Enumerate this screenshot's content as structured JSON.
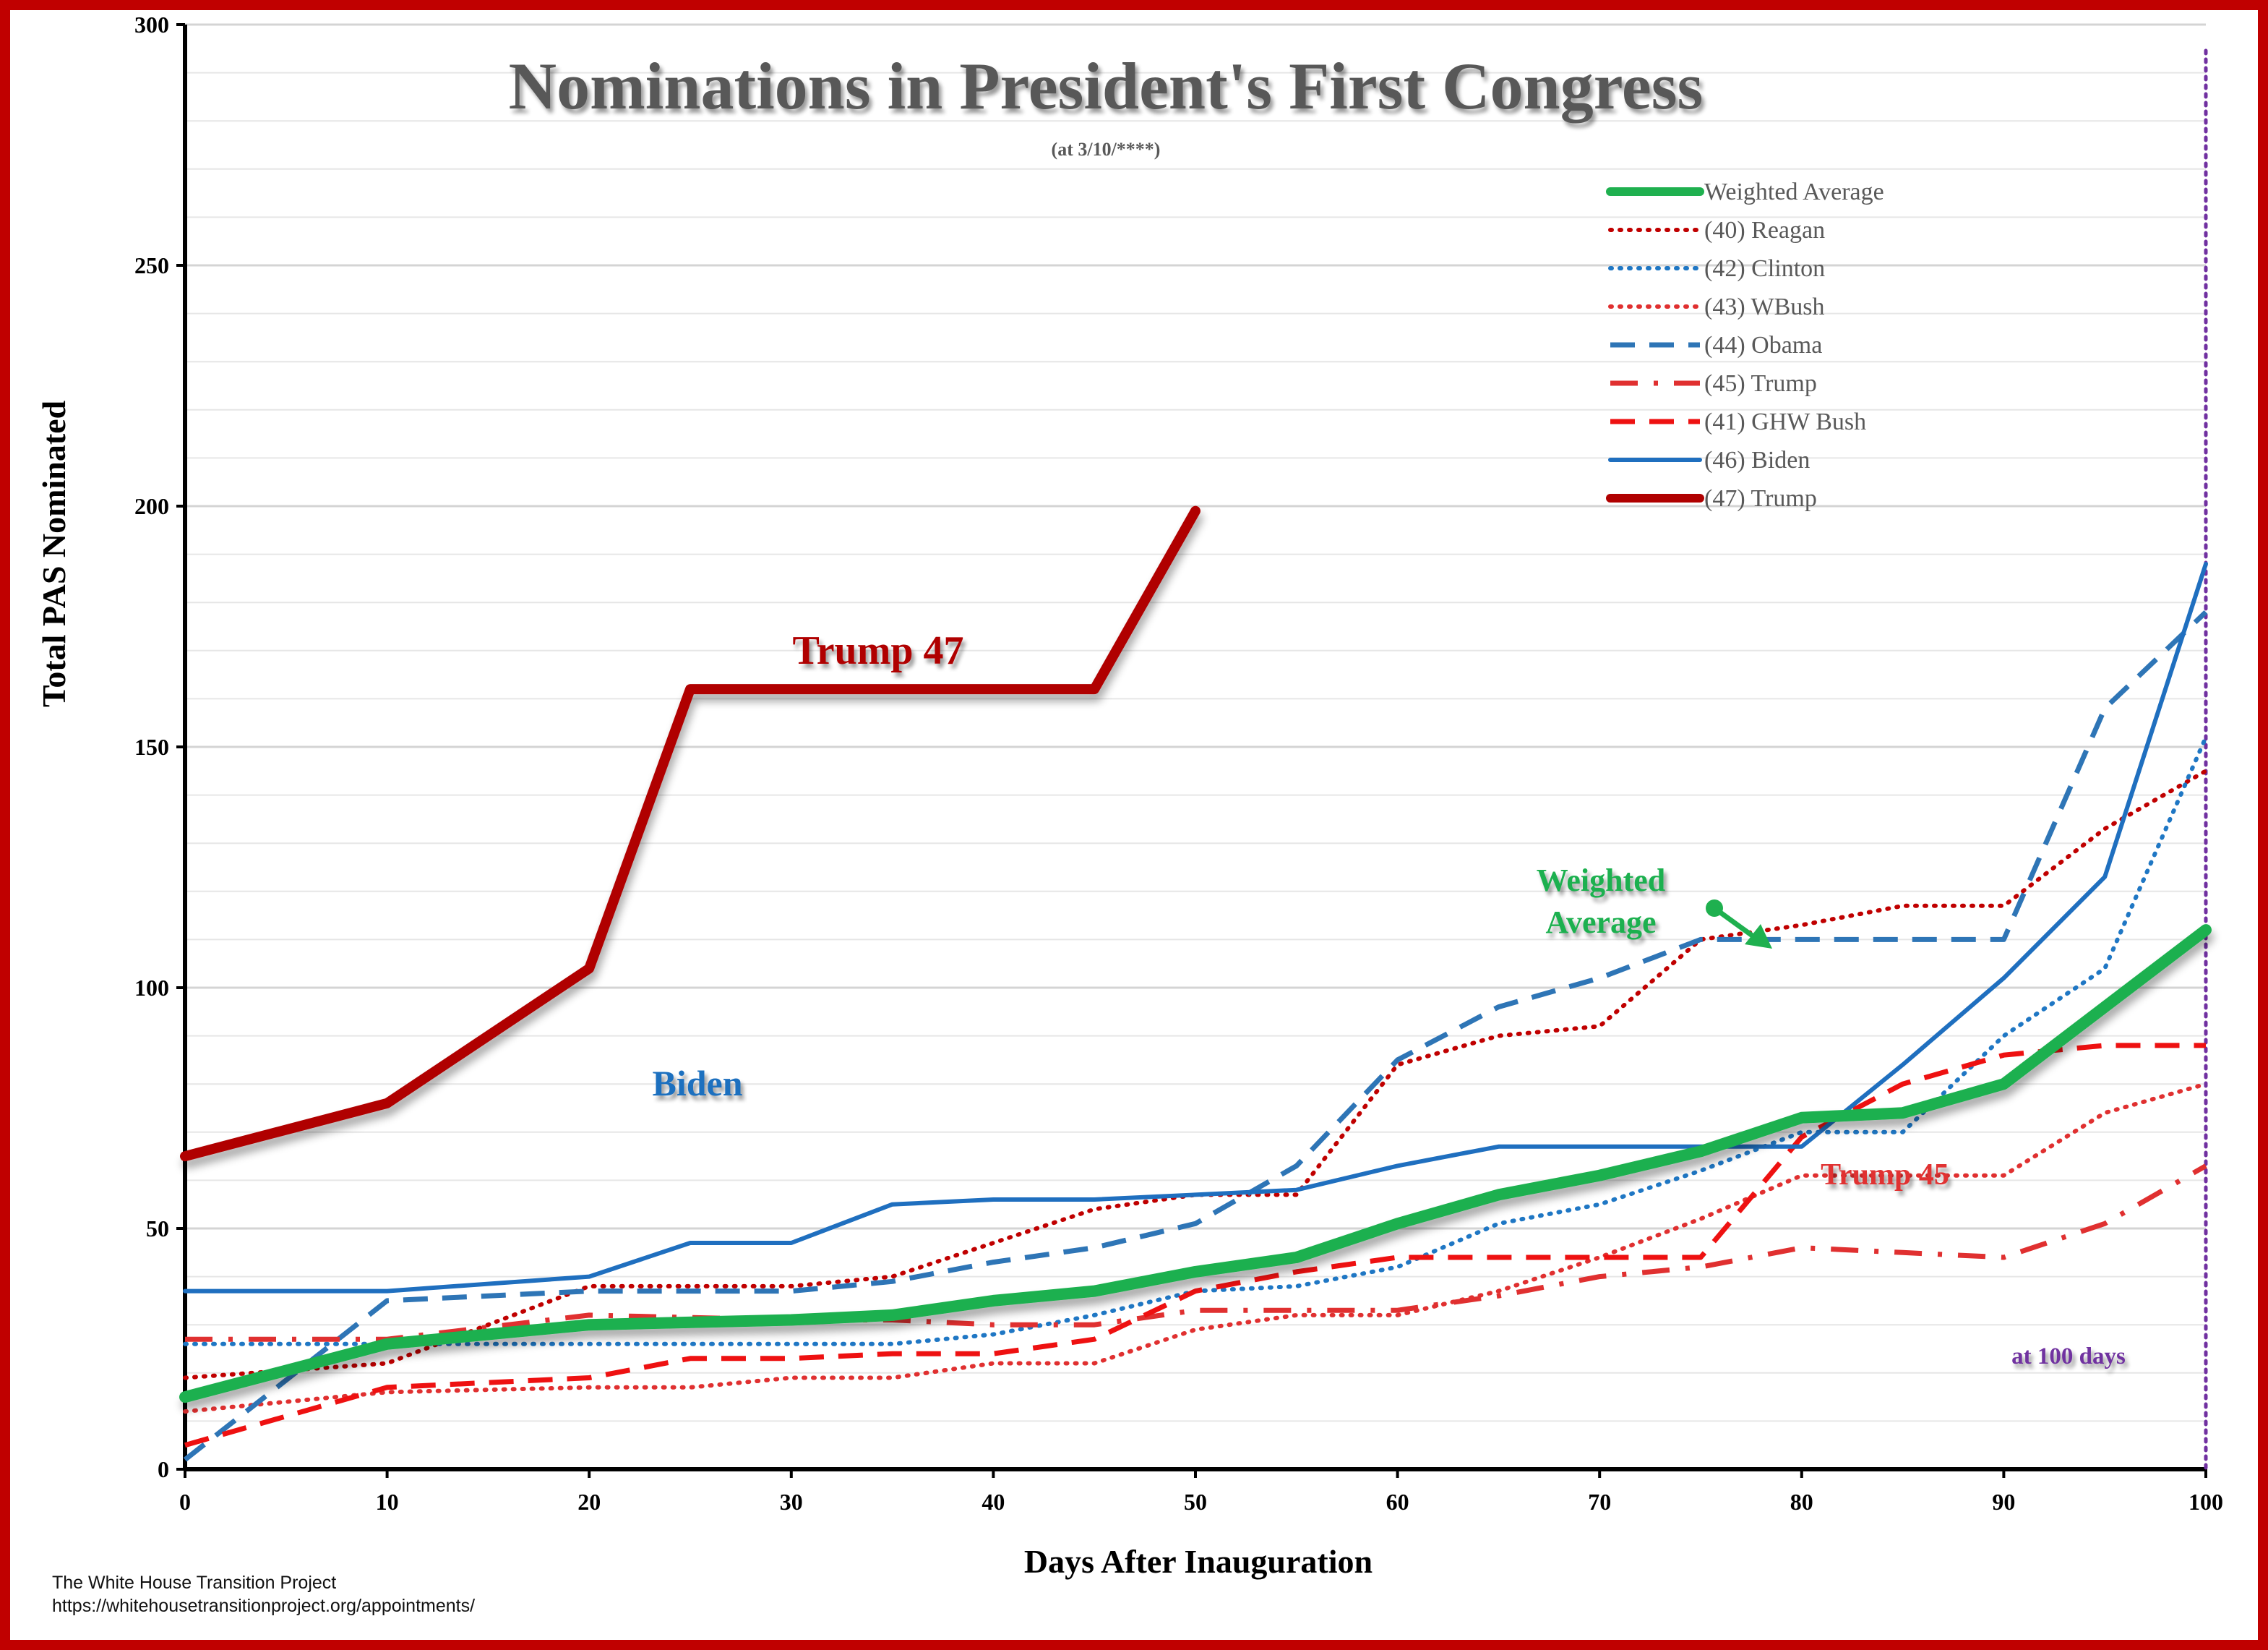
{
  "chart_data": {
    "type": "line",
    "title": "Nominations in President's First Congress",
    "subtitle": "(at 3/10/****)",
    "xlabel": "Days After Inauguration",
    "ylabel": "Total PAS Nominated",
    "xlim": [
      0,
      100
    ],
    "ylim": [
      0,
      300
    ],
    "x_ticks": [
      0,
      10,
      20,
      30,
      40,
      50,
      60,
      70,
      80,
      90,
      100
    ],
    "y_ticks": [
      0,
      50,
      100,
      150,
      200,
      250,
      300
    ],
    "grid": true,
    "legend_position": "top-right",
    "series": [
      {
        "name": "(40) Reagan",
        "color": "#c00000",
        "style": "dotted",
        "x": [
          0,
          10,
          20,
          30,
          35,
          40,
          45,
          50,
          55,
          60,
          65,
          70,
          75,
          80,
          85,
          90,
          95,
          100
        ],
        "y": [
          19,
          22,
          38,
          38,
          40,
          47,
          54,
          57,
          57,
          84,
          90,
          92,
          110,
          113,
          117,
          117,
          133,
          145
        ]
      },
      {
        "name": "(42) Clinton",
        "color": "#1f77c4",
        "style": "dotted",
        "x": [
          0,
          10,
          20,
          30,
          35,
          40,
          45,
          50,
          55,
          60,
          65,
          70,
          75,
          80,
          85,
          90,
          95,
          100
        ],
        "y": [
          26,
          26,
          26,
          26,
          26,
          28,
          32,
          37,
          38,
          42,
          51,
          55,
          62,
          70,
          70,
          90,
          104,
          152
        ]
      },
      {
        "name": "(43) WBush",
        "color": "#e03030",
        "style": "dotted",
        "x": [
          0,
          10,
          20,
          25,
          30,
          35,
          40,
          45,
          50,
          55,
          60,
          65,
          70,
          75,
          80,
          85,
          90,
          95,
          100
        ],
        "y": [
          12,
          16,
          17,
          17,
          19,
          19,
          22,
          22,
          29,
          32,
          32,
          37,
          44,
          52,
          61,
          61,
          61,
          74,
          80
        ]
      },
      {
        "name": "(44) Obama",
        "color": "#2e75b6",
        "style": "dashed",
        "x": [
          0,
          10,
          20,
          25,
          30,
          35,
          40,
          45,
          50,
          55,
          60,
          65,
          70,
          75,
          80,
          85,
          90,
          95,
          100
        ],
        "y": [
          2,
          35,
          37,
          37,
          37,
          39,
          43,
          46,
          51,
          63,
          85,
          96,
          102,
          110,
          110,
          110,
          110,
          158,
          178
        ]
      },
      {
        "name": "(45) Trump",
        "color": "#e03030",
        "style": "dashdot",
        "x": [
          0,
          10,
          20,
          30,
          35,
          40,
          45,
          50,
          55,
          60,
          65,
          70,
          75,
          80,
          85,
          90,
          95,
          100
        ],
        "y": [
          27,
          27,
          32,
          31,
          31,
          30,
          30,
          33,
          33,
          33,
          36,
          40,
          42,
          46,
          45,
          44,
          51,
          63
        ]
      },
      {
        "name": "(41) GHW Bush",
        "color": "#ee1111",
        "style": "dashed",
        "x": [
          0,
          10,
          20,
          25,
          30,
          35,
          40,
          45,
          50,
          55,
          60,
          65,
          70,
          75,
          80,
          85,
          90,
          95,
          100
        ],
        "y": [
          5,
          17,
          19,
          23,
          23,
          24,
          24,
          27,
          37,
          41,
          44,
          44,
          44,
          44,
          69,
          80,
          86,
          88,
          88
        ]
      },
      {
        "name": "(46) Biden",
        "color": "#1f6fbf",
        "style": "solid",
        "x": [
          0,
          10,
          20,
          25,
          30,
          35,
          40,
          45,
          50,
          55,
          60,
          65,
          70,
          75,
          80,
          85,
          90,
          95,
          100
        ],
        "y": [
          37,
          37,
          40,
          47,
          47,
          55,
          56,
          56,
          57,
          58,
          63,
          67,
          67,
          67,
          67,
          84,
          102,
          123,
          188
        ]
      },
      {
        "name": "Weighted Average",
        "color": "#1fb04f",
        "style": "thick",
        "x": [
          0,
          10,
          20,
          30,
          35,
          40,
          45,
          50,
          55,
          60,
          65,
          70,
          75,
          80,
          85,
          90,
          95,
          100
        ],
        "y": [
          15,
          26,
          30,
          31,
          32,
          35,
          37,
          41,
          44,
          51,
          57,
          61,
          66,
          73,
          74,
          80,
          96,
          112
        ]
      },
      {
        "name": "(47) Trump",
        "color": "#b00000",
        "style": "thickest",
        "x": [
          0,
          10,
          20,
          25,
          30,
          35,
          40,
          45,
          50
        ],
        "y": [
          65,
          76,
          104,
          162,
          162,
          162,
          162,
          162,
          199
        ]
      }
    ],
    "legend_order": [
      "Weighted Average",
      "(40) Reagan",
      "(42) Clinton",
      "(43) WBush",
      "(44) Obama",
      "(45) Trump",
      "(41) GHW Bush",
      "(46) Biden",
      "(47) Trump"
    ],
    "annotations": [
      {
        "text": "Trump 47",
        "color": "#b00000"
      },
      {
        "text": "Biden",
        "color": "#1f6fbf"
      },
      {
        "text": "Weighted",
        "color": "#1fb04f"
      },
      {
        "text": "Average",
        "color": "#1fb04f"
      },
      {
        "text": "Trump 45",
        "color": "#e03030"
      },
      {
        "text": "at 100 days",
        "color": "#7030a0"
      }
    ],
    "reference_line": {
      "x": 100,
      "color": "#7030a0",
      "style": "dotted"
    }
  },
  "footer": {
    "line1": "The White House Transition Project",
    "line2": "https://whitehousetransitionproject.org/appointments/"
  },
  "colors": {
    "frame": "#c00000",
    "title": "#595959"
  }
}
